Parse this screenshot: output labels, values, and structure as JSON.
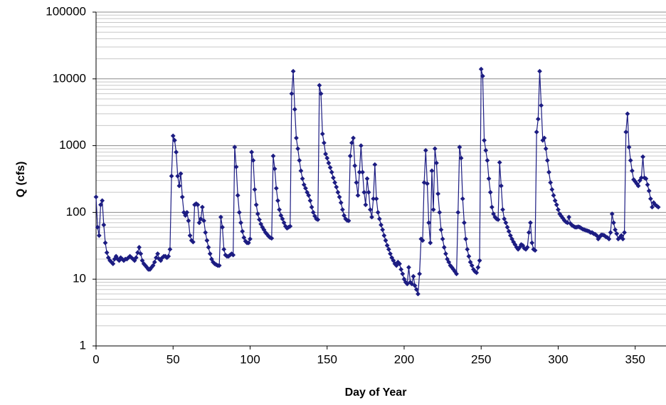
{
  "chart_data": {
    "type": "line",
    "x_label": "Day of Year",
    "y_label": "Q (cfs)",
    "log_y": true,
    "grid": true,
    "color": "#1c1c82",
    "xlim": [
      0,
      370
    ],
    "xticks": [
      0,
      50,
      100,
      150,
      200,
      250,
      300,
      350
    ],
    "ylim": [
      1,
      100000
    ],
    "yticks": [
      1,
      10,
      100,
      1000,
      10000,
      100000
    ],
    "y_minor_ticks": [
      2,
      3,
      4,
      5,
      6,
      7,
      8,
      9,
      20,
      30,
      40,
      50,
      60,
      70,
      80,
      90,
      200,
      300,
      400,
      500,
      600,
      700,
      800,
      900,
      2000,
      3000,
      4000,
      5000,
      6000,
      7000,
      8000,
      9000,
      20000,
      30000,
      40000,
      50000,
      60000,
      70000,
      80000,
      90000
    ],
    "x": [
      0,
      1,
      2,
      3,
      4,
      5,
      6,
      7,
      8,
      9,
      10,
      11,
      12,
      13,
      14,
      15,
      16,
      17,
      18,
      19,
      20,
      21,
      22,
      23,
      24,
      25,
      26,
      27,
      28,
      29,
      30,
      31,
      32,
      33,
      34,
      35,
      36,
      37,
      38,
      39,
      40,
      41,
      42,
      43,
      44,
      45,
      46,
      47,
      48,
      49,
      50,
      51,
      52,
      53,
      54,
      55,
      56,
      57,
      58,
      59,
      60,
      61,
      62,
      63,
      64,
      65,
      66,
      67,
      68,
      69,
      70,
      71,
      72,
      73,
      74,
      75,
      76,
      77,
      78,
      79,
      80,
      81,
      82,
      83,
      84,
      85,
      86,
      87,
      88,
      89,
      90,
      91,
      92,
      93,
      94,
      95,
      96,
      97,
      98,
      99,
      100,
      101,
      102,
      103,
      104,
      105,
      106,
      107,
      108,
      109,
      110,
      111,
      112,
      113,
      114,
      115,
      116,
      117,
      118,
      119,
      120,
      121,
      122,
      123,
      124,
      125,
      126,
      127,
      128,
      129,
      130,
      131,
      132,
      133,
      134,
      135,
      136,
      137,
      138,
      139,
      140,
      141,
      142,
      143,
      144,
      145,
      146,
      147,
      148,
      149,
      150,
      151,
      152,
      153,
      154,
      155,
      156,
      157,
      158,
      159,
      160,
      161,
      162,
      163,
      164,
      165,
      166,
      167,
      168,
      169,
      170,
      171,
      172,
      173,
      174,
      175,
      176,
      177,
      178,
      179,
      180,
      181,
      182,
      183,
      184,
      185,
      186,
      187,
      188,
      189,
      190,
      191,
      192,
      193,
      194,
      195,
      196,
      197,
      198,
      199,
      200,
      201,
      202,
      203,
      204,
      205,
      206,
      207,
      208,
      209,
      210,
      211,
      212,
      213,
      214,
      215,
      216,
      217,
      218,
      219,
      220,
      221,
      222,
      223,
      224,
      225,
      226,
      227,
      228,
      229,
      230,
      231,
      232,
      233,
      234,
      235,
      236,
      237,
      238,
      239,
      240,
      241,
      242,
      243,
      244,
      245,
      246,
      247,
      248,
      249,
      250,
      251,
      252,
      253,
      254,
      255,
      256,
      257,
      258,
      259,
      260,
      261,
      262,
      263,
      264,
      265,
      266,
      267,
      268,
      269,
      270,
      271,
      272,
      273,
      274,
      275,
      276,
      277,
      278,
      279,
      280,
      281,
      282,
      283,
      284,
      285,
      286,
      287,
      288,
      289,
      290,
      291,
      292,
      293,
      294,
      295,
      296,
      297,
      298,
      299,
      300,
      301,
      302,
      303,
      304,
      305,
      306,
      307,
      308,
      309,
      310,
      311,
      312,
      313,
      314,
      315,
      316,
      317,
      318,
      319,
      320,
      321,
      322,
      323,
      324,
      325,
      326,
      327,
      328,
      329,
      330,
      331,
      332,
      333,
      334,
      335,
      336,
      337,
      338,
      339,
      340,
      341,
      342,
      343,
      344,
      345,
      346,
      347,
      348,
      349,
      350,
      351,
      352,
      353,
      354,
      355,
      356,
      357,
      358,
      359,
      360,
      361,
      362,
      363,
      364,
      365
    ],
    "values": [
      170,
      60,
      45,
      130,
      150,
      65,
      35,
      25,
      21,
      19,
      18,
      17,
      20,
      22,
      20,
      19,
      21,
      20,
      19,
      20,
      20,
      21,
      22,
      21,
      20,
      19,
      21,
      25,
      30,
      24,
      19,
      17,
      16,
      15,
      14,
      14,
      15,
      16,
      18,
      21,
      24,
      20,
      19,
      21,
      22,
      22,
      21,
      22,
      28,
      350,
      1400,
      1200,
      800,
      350,
      250,
      380,
      170,
      100,
      90,
      100,
      75,
      45,
      38,
      36,
      130,
      135,
      130,
      70,
      80,
      120,
      75,
      50,
      38,
      30,
      24,
      20,
      18,
      17,
      16.5,
      16,
      16,
      85,
      60,
      28,
      23,
      22,
      22,
      23,
      24,
      23,
      950,
      480,
      180,
      100,
      70,
      52,
      42,
      37,
      35,
      35,
      40,
      800,
      600,
      220,
      130,
      95,
      78,
      67,
      60,
      55,
      50,
      47,
      44,
      42,
      41,
      700,
      450,
      230,
      150,
      110,
      90,
      80,
      70,
      62,
      58,
      60,
      62,
      6000,
      13000,
      3500,
      1300,
      900,
      600,
      420,
      320,
      260,
      230,
      200,
      180,
      150,
      120,
      100,
      88,
      80,
      78,
      8000,
      6000,
      1500,
      1100,
      750,
      650,
      550,
      470,
      400,
      330,
      280,
      240,
      200,
      170,
      140,
      110,
      90,
      80,
      76,
      75,
      700,
      1100,
      1300,
      500,
      280,
      180,
      400,
      1000,
      400,
      200,
      130,
      320,
      200,
      110,
      85,
      160,
      520,
      160,
      100,
      80,
      65,
      55,
      45,
      38,
      32,
      28,
      24,
      21,
      19,
      17,
      16,
      18,
      17,
      14,
      12,
      10,
      9,
      8.5,
      15,
      9,
      8.5,
      11,
      8,
      7,
      6,
      12,
      40,
      38,
      280,
      850,
      270,
      70,
      35,
      420,
      110,
      900,
      550,
      190,
      100,
      55,
      40,
      30,
      24,
      20,
      18,
      16,
      15,
      14,
      13,
      12,
      100,
      950,
      650,
      160,
      70,
      40,
      28,
      22,
      18,
      16,
      14,
      13,
      12.5,
      15,
      19,
      14000,
      11000,
      1200,
      850,
      600,
      320,
      200,
      120,
      95,
      85,
      80,
      78,
      560,
      250,
      110,
      80,
      70,
      60,
      52,
      45,
      40,
      36,
      33,
      30,
      28,
      30,
      33,
      32,
      29,
      28,
      30,
      50,
      70,
      35,
      28,
      27,
      1600,
      2500,
      13000,
      4000,
      1200,
      1300,
      900,
      600,
      400,
      280,
      220,
      180,
      150,
      130,
      110,
      95,
      88,
      82,
      76,
      72,
      70,
      85,
      68,
      64,
      62,
      60,
      60,
      61,
      60,
      58,
      56,
      55,
      54,
      53,
      52,
      50,
      50,
      48,
      47,
      45,
      40,
      43,
      46,
      46,
      45,
      43,
      42,
      40,
      50,
      95,
      70,
      55,
      48,
      40,
      42,
      45,
      40,
      50,
      1600,
      3000,
      950,
      600,
      420,
      310,
      290,
      270,
      250,
      300,
      330,
      680,
      330,
      320,
      260,
      210,
      160,
      120,
      140,
      130,
      125,
      120
    ]
  }
}
